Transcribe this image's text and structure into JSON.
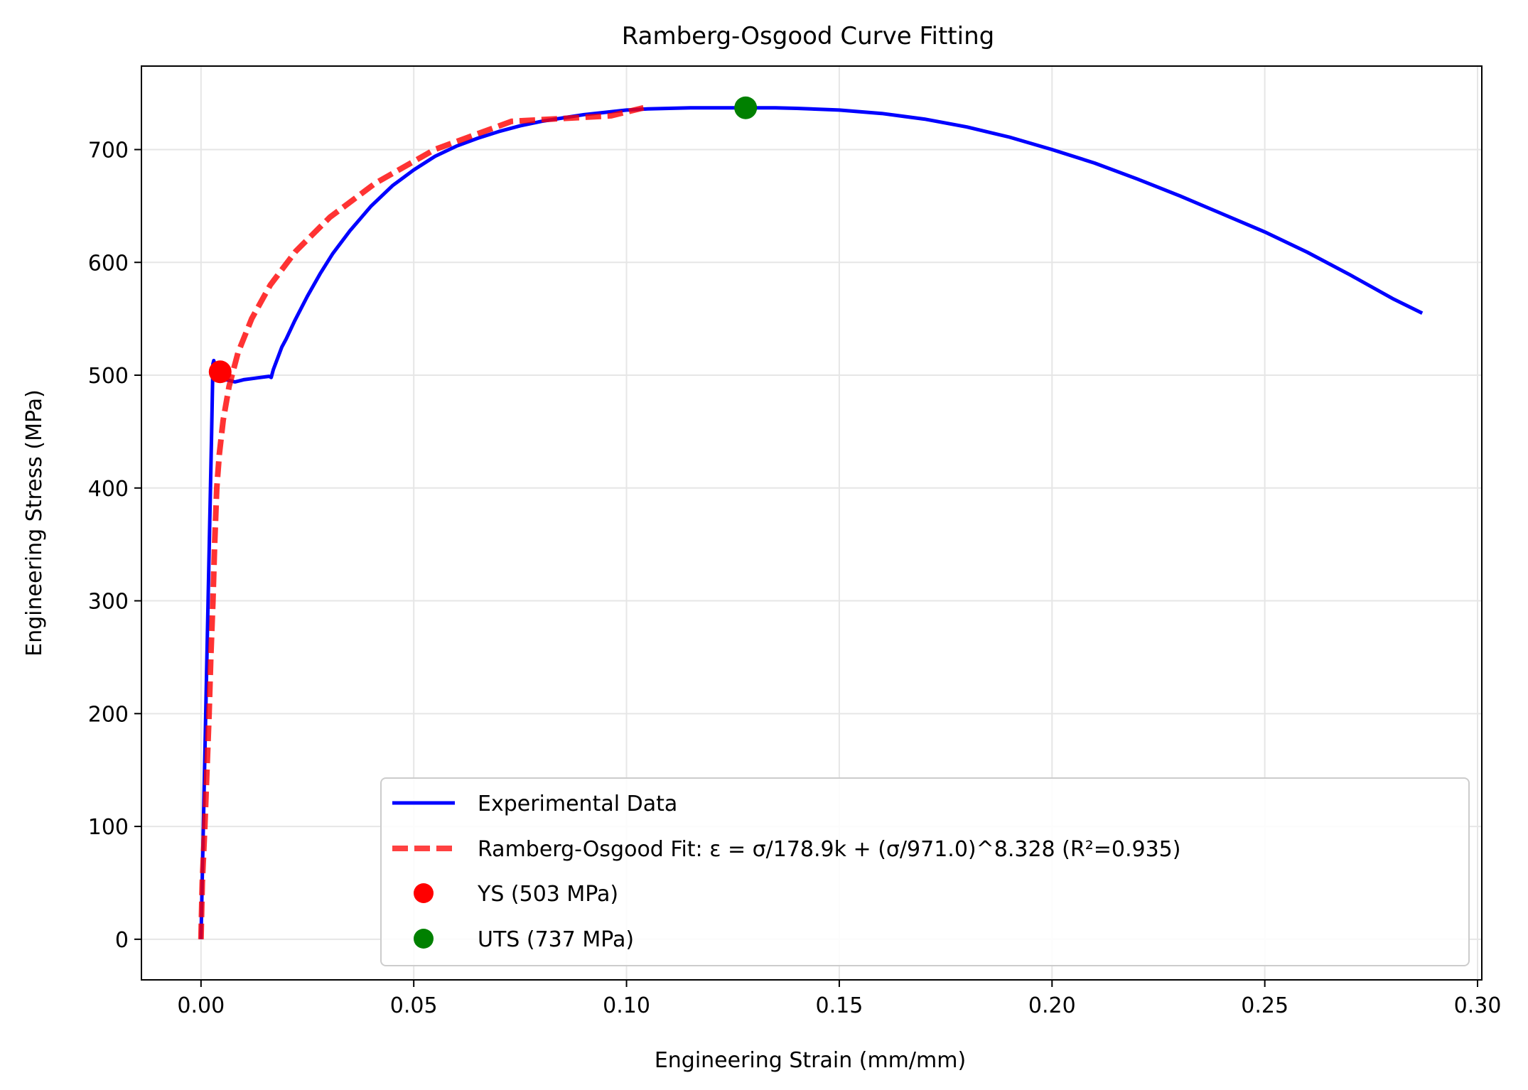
{
  "chart_data": {
    "type": "line",
    "title": "Ramberg-Osgood Curve Fitting",
    "xlabel": "Engineering Strain (mm/mm)",
    "ylabel": "Engineering Stress (MPa)",
    "xlim": [
      -0.014,
      0.301
    ],
    "ylim": [
      -36,
      774
    ],
    "xticks": [
      0.0,
      0.05,
      0.1,
      0.15,
      0.2,
      0.25,
      0.3
    ],
    "xtick_labels": [
      "0.00",
      "0.05",
      "0.10",
      "0.15",
      "0.20",
      "0.25",
      "0.30"
    ],
    "yticks": [
      0,
      100,
      200,
      300,
      400,
      500,
      600,
      700
    ],
    "ytick_labels": [
      "0",
      "100",
      "200",
      "300",
      "400",
      "500",
      "600",
      "700"
    ],
    "grid": true,
    "legend_position": "lower-right",
    "series": [
      {
        "name": "Experimental Data",
        "style": "solid",
        "color": "#0000ff",
        "x": [
          0.0,
          0.0005,
          0.001,
          0.0015,
          0.002,
          0.0025,
          0.0028,
          0.003,
          0.0035,
          0.004,
          0.005,
          0.006,
          0.008,
          0.01,
          0.012,
          0.014,
          0.016,
          0.0165,
          0.017,
          0.018,
          0.019,
          0.02,
          0.022,
          0.025,
          0.028,
          0.031,
          0.035,
          0.04,
          0.045,
          0.05,
          0.055,
          0.06,
          0.065,
          0.07,
          0.075,
          0.08,
          0.085,
          0.09,
          0.095,
          0.1,
          0.105,
          0.11,
          0.115,
          0.12,
          0.125,
          0.128,
          0.135,
          0.14,
          0.15,
          0.16,
          0.17,
          0.18,
          0.19,
          0.2,
          0.21,
          0.22,
          0.23,
          0.24,
          0.25,
          0.26,
          0.27,
          0.28,
          0.287
        ],
        "y": [
          0,
          90,
          180,
          270,
          360,
          450,
          510,
          513,
          505,
          498,
          495,
          496,
          494,
          496,
          497,
          498,
          499,
          498,
          505,
          515,
          525,
          532,
          548,
          570,
          590,
          608,
          628,
          650,
          668,
          682,
          694,
          703,
          710,
          716,
          721,
          725,
          728,
          731,
          733,
          735,
          736,
          736.5,
          737,
          737,
          737,
          737,
          737,
          736.5,
          735,
          732,
          727,
          720,
          711,
          700,
          688,
          674,
          659,
          643,
          627,
          609,
          589,
          568,
          555
        ]
      },
      {
        "name": "Ramberg-Osgood Fit: ε = σ/178.9k + (σ/971.0)^8.328 (R²=0.935)",
        "style": "dashed",
        "color": "#ff0000",
        "x": [
          0.0,
          0.0003,
          0.0009,
          0.0014,
          0.0019,
          0.0023,
          0.0028,
          0.0032,
          0.0037,
          0.0043,
          0.0052,
          0.0066,
          0.0087,
          0.0119,
          0.0163,
          0.0223,
          0.0303,
          0.0409,
          0.0549,
          0.073,
          0.0964,
          0.104
        ],
        "y": [
          0,
          50,
          100,
          150,
          200,
          250,
          300,
          350,
          400,
          430,
          460,
          490,
          520,
          550,
          580,
          610,
          640,
          670,
          700,
          725,
          730,
          737
        ]
      },
      {
        "name": "YS (503 MPa)",
        "style": "marker",
        "color": "#ff0000",
        "x": [
          0.0045
        ],
        "y": [
          503
        ]
      },
      {
        "name": "UTS (737 MPa)",
        "style": "marker",
        "color": "#008000",
        "x": [
          0.128
        ],
        "y": [
          737
        ]
      }
    ]
  }
}
